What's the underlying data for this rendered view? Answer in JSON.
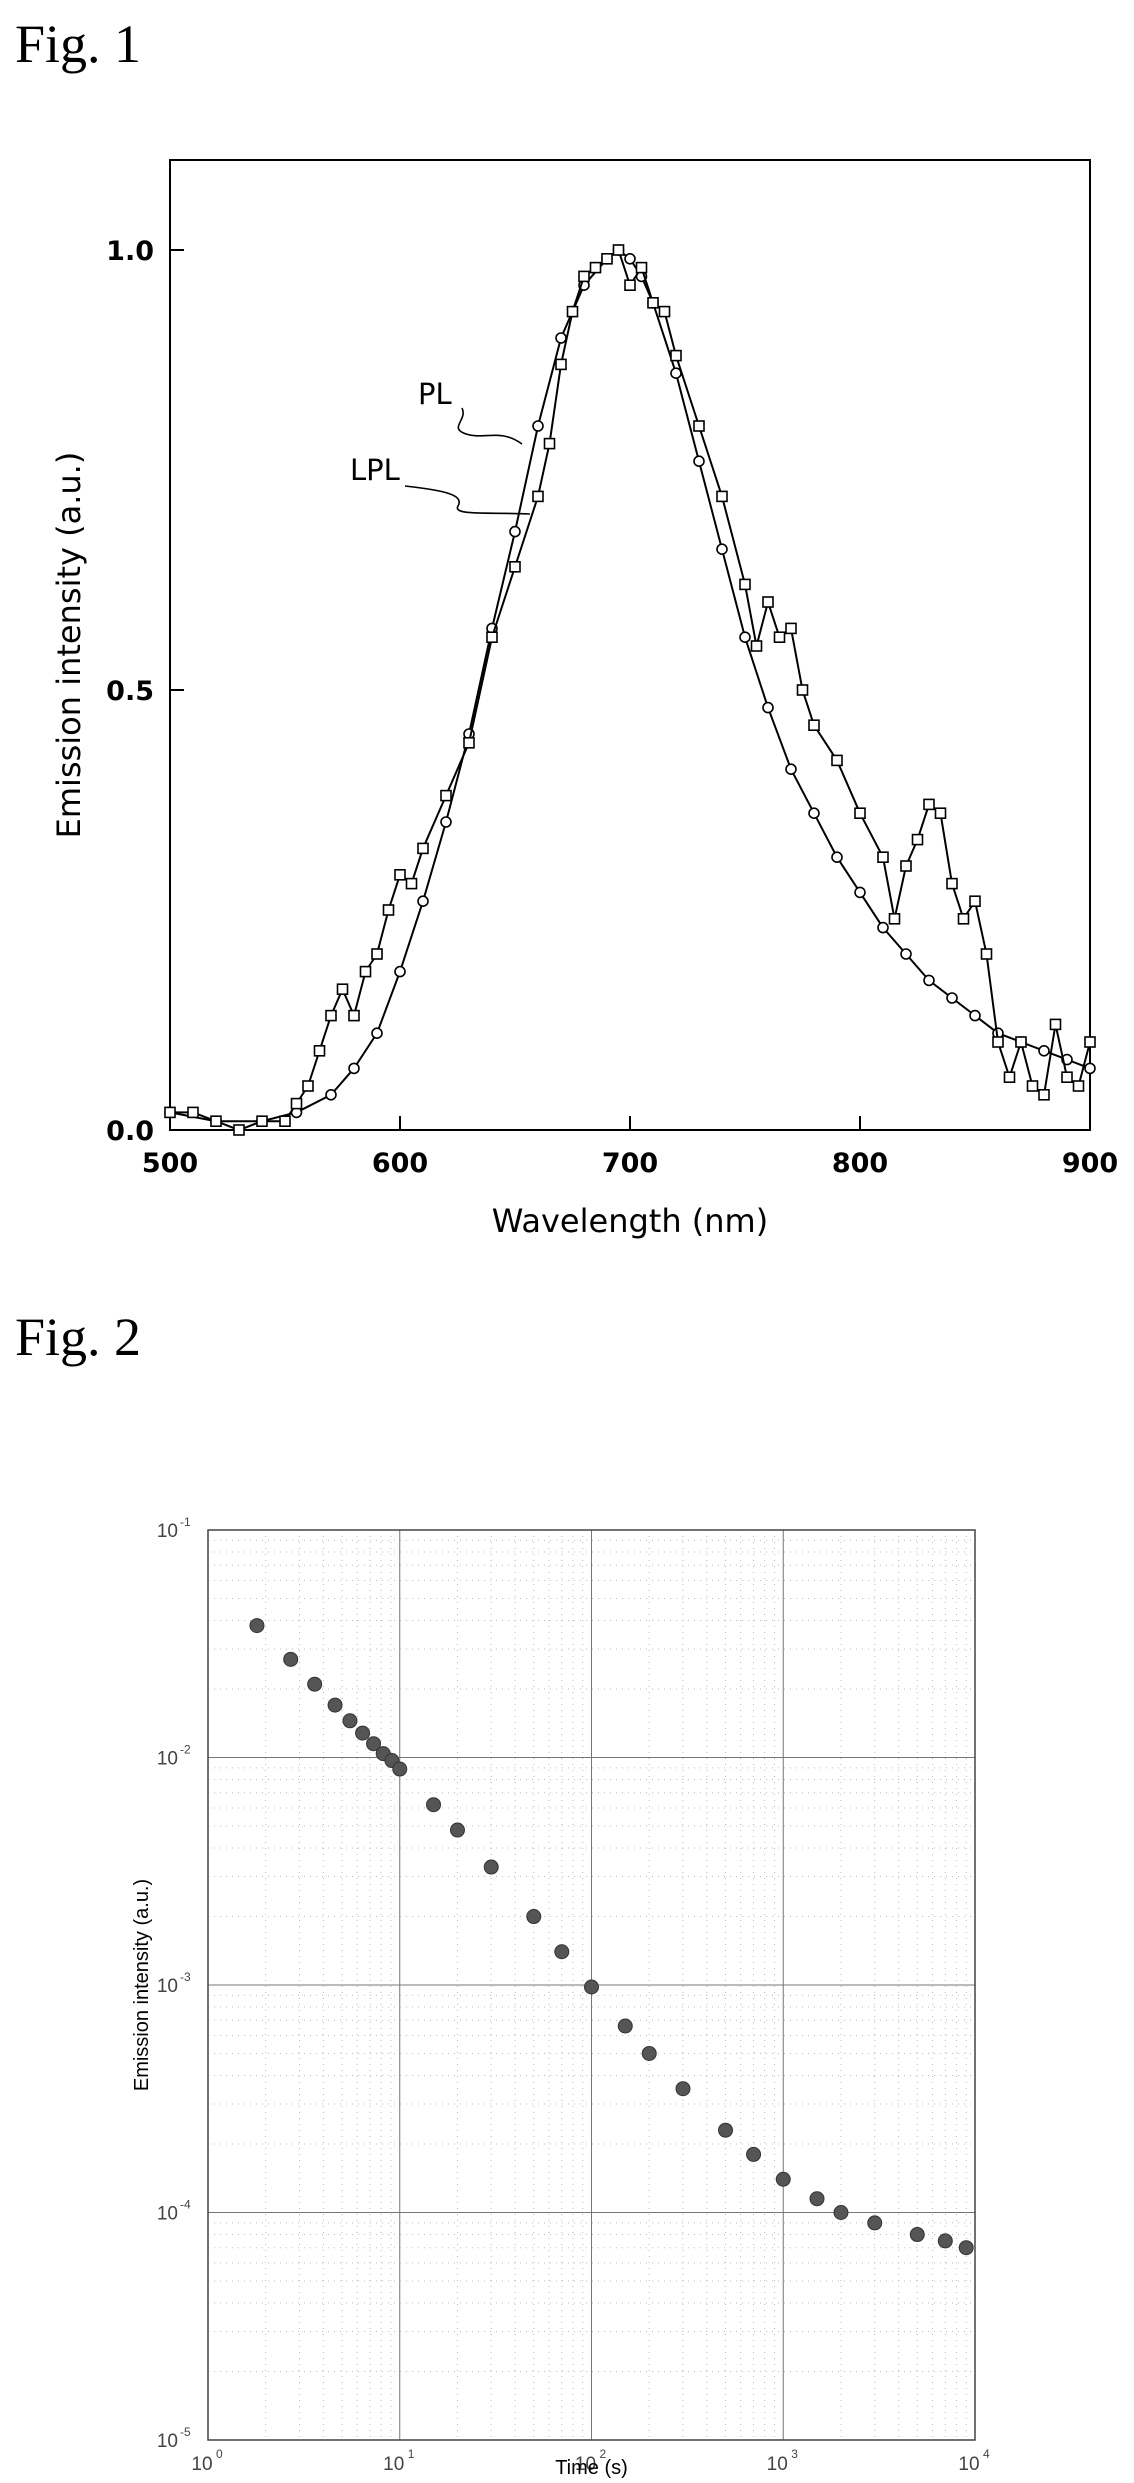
{
  "figures": [
    {
      "label": "Fig. 1"
    },
    {
      "label": "Fig. 2"
    }
  ],
  "colors": {
    "ink": "#000000",
    "marker_fill": "#ffffff",
    "decay_marker": "#555555",
    "grid": "#777777"
  },
  "chart_data": [
    {
      "type": "line",
      "title": "",
      "xlabel": "Wavelength (nm)",
      "ylabel": "Emission intensity (a.u.)",
      "xlim": [
        500,
        900
      ],
      "ylim": [
        0.0,
        1.0
      ],
      "x_ticks": [
        500,
        600,
        700,
        800,
        900
      ],
      "y_ticks": [
        0.0,
        0.5,
        1.0
      ],
      "x_tick_labels": [
        "500",
        "600",
        "700",
        "800",
        "900"
      ],
      "y_tick_labels": [
        "0.0",
        "0.5",
        "1.0"
      ],
      "grid": false,
      "annotations": [
        "PL",
        "LPL"
      ],
      "series": [
        {
          "name": "PL",
          "marker": "circle",
          "x": [
            500,
            520,
            540,
            555,
            570,
            580,
            590,
            600,
            610,
            620,
            630,
            640,
            650,
            660,
            670,
            680,
            690,
            695,
            700,
            705,
            710,
            720,
            730,
            740,
            750,
            760,
            770,
            780,
            790,
            800,
            810,
            820,
            830,
            840,
            850,
            860,
            870,
            880,
            890,
            900
          ],
          "y": [
            0.02,
            0.01,
            0.01,
            0.02,
            0.04,
            0.07,
            0.11,
            0.18,
            0.26,
            0.35,
            0.45,
            0.57,
            0.68,
            0.8,
            0.9,
            0.96,
            0.99,
            1.0,
            0.99,
            0.97,
            0.94,
            0.86,
            0.76,
            0.66,
            0.56,
            0.48,
            0.41,
            0.36,
            0.31,
            0.27,
            0.23,
            0.2,
            0.17,
            0.15,
            0.13,
            0.11,
            0.1,
            0.09,
            0.08,
            0.07
          ]
        },
        {
          "name": "LPL",
          "marker": "square",
          "x": [
            500,
            510,
            520,
            530,
            540,
            550,
            555,
            560,
            565,
            570,
            575,
            580,
            585,
            590,
            595,
            600,
            605,
            610,
            620,
            630,
            640,
            650,
            660,
            665,
            670,
            675,
            680,
            685,
            690,
            695,
            700,
            705,
            710,
            715,
            720,
            730,
            740,
            750,
            755,
            760,
            765,
            770,
            775,
            780,
            790,
            800,
            810,
            815,
            820,
            825,
            830,
            835,
            840,
            845,
            850,
            855,
            860,
            865,
            870,
            875,
            880,
            885,
            890,
            895,
            900
          ],
          "y": [
            0.02,
            0.02,
            0.01,
            0.0,
            0.01,
            0.01,
            0.03,
            0.05,
            0.09,
            0.13,
            0.16,
            0.13,
            0.18,
            0.2,
            0.25,
            0.29,
            0.28,
            0.32,
            0.38,
            0.44,
            0.56,
            0.64,
            0.72,
            0.78,
            0.87,
            0.93,
            0.97,
            0.98,
            0.99,
            1.0,
            0.96,
            0.98,
            0.94,
            0.93,
            0.88,
            0.8,
            0.72,
            0.62,
            0.55,
            0.6,
            0.56,
            0.57,
            0.5,
            0.46,
            0.42,
            0.36,
            0.31,
            0.24,
            0.3,
            0.33,
            0.37,
            0.36,
            0.28,
            0.24,
            0.26,
            0.2,
            0.1,
            0.06,
            0.1,
            0.05,
            0.04,
            0.12,
            0.06,
            0.05,
            0.1
          ]
        }
      ]
    },
    {
      "type": "scatter",
      "title": "",
      "xlabel": "Time (s)",
      "ylabel": "Emission intensity (a.u.)",
      "x_scale": "log",
      "y_scale": "log",
      "xlim": [
        1,
        10000
      ],
      "ylim": [
        1e-05,
        0.1
      ],
      "x_ticks": [
        1,
        10,
        100,
        1000,
        10000
      ],
      "y_ticks": [
        1e-05,
        0.0001,
        0.001,
        0.01,
        0.1
      ],
      "x_tick_labels": [
        {
          "base": "10",
          "exp": "0"
        },
        {
          "base": "10",
          "exp": "1"
        },
        {
          "base": "10",
          "exp": "2"
        },
        {
          "base": "10",
          "exp": "3"
        },
        {
          "base": "10",
          "exp": "4"
        }
      ],
      "y_tick_labels": [
        {
          "base": "10",
          "exp": "-5"
        },
        {
          "base": "10",
          "exp": "-4"
        },
        {
          "base": "10",
          "exp": "-3"
        },
        {
          "base": "10",
          "exp": "-2"
        },
        {
          "base": "10",
          "exp": "-1"
        }
      ],
      "grid": true,
      "series": [
        {
          "marker": "filled-circle",
          "x": [
            1.8,
            2.7,
            3.6,
            4.6,
            5.5,
            6.4,
            7.3,
            8.2,
            9.1,
            10,
            15,
            20,
            30,
            50,
            70,
            100,
            150,
            200,
            300,
            500,
            700,
            1000,
            1500,
            2000,
            3000,
            5000,
            7000,
            9000
          ],
          "y": [
            0.038,
            0.027,
            0.021,
            0.017,
            0.0145,
            0.0128,
            0.0115,
            0.0104,
            0.0097,
            0.0089,
            0.0062,
            0.0048,
            0.0033,
            0.002,
            0.0014,
            0.00098,
            0.00066,
            0.0005,
            0.00035,
            0.00023,
            0.00018,
            0.00014,
            0.000115,
            0.0001,
            9e-05,
            8e-05,
            7.5e-05,
            7e-05
          ]
        }
      ]
    }
  ]
}
